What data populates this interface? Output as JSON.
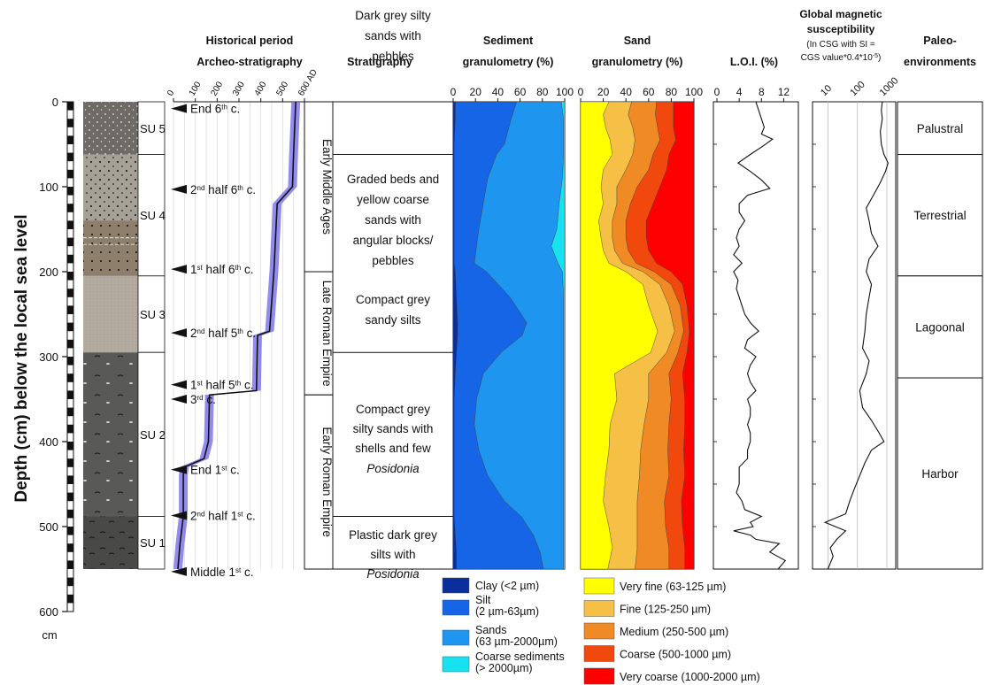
{
  "y_axis": {
    "label": "Depth (cm) below the local sea level",
    "unit": "cm",
    "ticks": [
      "0",
      "100",
      "200",
      "300",
      "400",
      "500",
      "600"
    ]
  },
  "headers": {
    "historical": [
      "Historical period",
      "Archeo-stratigraphy"
    ],
    "stratigraphy": "Stratigraphy",
    "sediment": [
      "Sediment",
      "granulometry (%)"
    ],
    "sand": [
      "Sand",
      "granulometry (%)"
    ],
    "loi": "L.O.I. (%)",
    "mag": [
      "Global magnetic",
      "susceptibility"
    ],
    "mag_note": [
      "(In CSG with SI =",
      "CGS value*0.4*10-5)"
    ],
    "paleo": [
      "Paleo-",
      "environments"
    ]
  },
  "su_units": [
    {
      "label": "SU 5",
      "top": 0,
      "bottom": 62
    },
    {
      "label": "SU 4",
      "top": 62,
      "bottom": 205
    },
    {
      "label": "SU 3",
      "top": 205,
      "bottom": 295
    },
    {
      "label": "SU 2",
      "top": 295,
      "bottom": 488
    },
    {
      "label": "SU 1",
      "top": 488,
      "bottom": 550
    }
  ],
  "periods": [
    {
      "label": "Early Middle Ages",
      "top": 0,
      "bottom": 200
    },
    {
      "label": "Late Roman Empire",
      "top": 200,
      "bottom": 345
    },
    {
      "label": "Early Roman Empire",
      "top": 345,
      "bottom": 550
    }
  ],
  "stratigraphy_units": [
    {
      "top": 0,
      "bottom": 62,
      "lines": [
        "Dark grey silty",
        "sands with",
        "pebbles"
      ]
    },
    {
      "top": 62,
      "bottom": 295,
      "lines": [
        "Graded beds and",
        "yellow coarse",
        "sands with",
        "angular blocks/",
        "pebbles"
      ]
    },
    {
      "top": 200,
      "bottom": 295,
      "lines": [
        "Compact grey",
        "sandy silts"
      ]
    },
    {
      "top": 295,
      "bottom": 488,
      "lines": [
        "Compact grey",
        "silty sands with",
        "shells and few",
        "Posidonia"
      ]
    },
    {
      "top": 488,
      "bottom": 550,
      "lines": [
        "Plastic dark grey",
        "silts with",
        "Posidonia"
      ]
    }
  ],
  "paleoenvironments": [
    {
      "label": "Palustral",
      "top": 0,
      "bottom": 62
    },
    {
      "label": "Terrestrial",
      "top": 62,
      "bottom": 205
    },
    {
      "label": "Lagoonal",
      "top": 205,
      "bottom": 325
    },
    {
      "label": "Harbor",
      "top": 325,
      "bottom": 550
    }
  ],
  "archeo_markers": [
    {
      "depth": 8,
      "label": "End 6th c."
    },
    {
      "depth": 103,
      "label": "2nd half 6th c."
    },
    {
      "depth": 197,
      "label": "1st half 6th c."
    },
    {
      "depth": 272,
      "label": "2nd half 5th c."
    },
    {
      "depth": 333,
      "label": "1st half 5th c."
    },
    {
      "depth": 350,
      "label": "3rd c."
    },
    {
      "depth": 433,
      "label": "End 1st c."
    },
    {
      "depth": 487,
      "label": "2nd half 1st c."
    },
    {
      "depth": 553,
      "label": "Middle 1st c."
    }
  ],
  "legend": {
    "sediment": [
      {
        "label": "Clay (<2 µm)",
        "color": "#0a2e9c"
      },
      {
        "label": "Silt\n(2 µm-63µm)",
        "color": "#1565e6"
      },
      {
        "label": "Sands\n(63 µm-2000µm)",
        "color": "#1e95ee"
      },
      {
        "label": "Coarse sediments\n(> 2000µm)",
        "color": "#19e2f0"
      }
    ],
    "sand": [
      {
        "label": "Very fine (63-125 µm)",
        "color": "#ffff00"
      },
      {
        "label": "Fine (125-250 µm)",
        "color": "#f6bf45"
      },
      {
        "label": "Medium (250-500 µm)",
        "color": "#f08a24"
      },
      {
        "label": "Coarse (500-1000 µm)",
        "color": "#f0480d"
      },
      {
        "label": "Very coarse (1000-2000 µm)",
        "color": "#ff0000"
      }
    ]
  },
  "chart_data": [
    {
      "type": "line",
      "title": "Historical period / Archeo-stratigraphy",
      "xlabel": "AD",
      "ticks": [
        "0",
        "100",
        "200",
        "300",
        "400",
        "500",
        "600 AD"
      ],
      "xlim": [
        0,
        600
      ],
      "color": "#6f66ea",
      "depth": [
        0,
        62,
        100,
        120,
        200,
        270,
        275,
        340,
        345,
        400,
        420,
        430,
        440,
        488,
        520,
        550
      ],
      "value": [
        560,
        550,
        545,
        475,
        460,
        440,
        385,
        380,
        165,
        160,
        140,
        50,
        45,
        45,
        30,
        20
      ]
    },
    {
      "type": "area",
      "title": "Sediment granulometry (%)",
      "ticks": [
        "0",
        "20",
        "40",
        "60",
        "80",
        "100"
      ],
      "xlim": [
        0,
        100
      ],
      "depth": [
        0,
        20,
        50,
        62,
        90,
        120,
        150,
        170,
        190,
        200,
        230,
        260,
        275,
        295,
        320,
        350,
        380,
        410,
        440,
        470,
        488,
        510,
        530,
        550
      ],
      "series": [
        {
          "name": "Clay (<2 µm)",
          "color": "#0a2e9c",
          "values": [
            2,
            2,
            1,
            1,
            1,
            1,
            1,
            1,
            1,
            2,
            3,
            4,
            4,
            3,
            2,
            1,
            1,
            1,
            1,
            1,
            1,
            2,
            3,
            3
          ]
        },
        {
          "name": "Silt (2 µm-63µm)",
          "color": "#1565e6",
          "values": [
            55,
            50,
            45,
            38,
            30,
            26,
            22,
            20,
            18,
            28,
            48,
            62,
            58,
            40,
            25,
            20,
            18,
            22,
            30,
            45,
            60,
            70,
            75,
            78
          ]
        },
        {
          "name": "Sands (63 µm-2000µm)",
          "color": "#1e95ee",
          "values": [
            40,
            47,
            53,
            60,
            67,
            68,
            70,
            67,
            75,
            68,
            48,
            33,
            37,
            56,
            72,
            78,
            80,
            76,
            68,
            53,
            38,
            27,
            21,
            18
          ]
        },
        {
          "name": "Coarse sediments (> 2000µm)",
          "color": "#19e2f0",
          "values": [
            3,
            1,
            1,
            1,
            2,
            5,
            7,
            12,
            6,
            2,
            1,
            1,
            1,
            1,
            1,
            1,
            1,
            1,
            1,
            1,
            1,
            1,
            1,
            1
          ]
        }
      ]
    },
    {
      "type": "area",
      "title": "Sand granulometry (%)",
      "ticks": [
        "0",
        "20",
        "40",
        "60",
        "80",
        "100"
      ],
      "xlim": [
        0,
        100
      ],
      "depth": [
        0,
        15,
        30,
        45,
        62,
        80,
        100,
        120,
        140,
        160,
        175,
        190,
        200,
        215,
        240,
        270,
        295,
        320,
        350,
        380,
        410,
        440,
        470,
        500,
        525,
        550
      ],
      "series": [
        {
          "name": "Very fine (63-125 µm)",
          "color": "#ffff00",
          "values": [
            25,
            20,
            22,
            26,
            28,
            20,
            18,
            20,
            16,
            18,
            20,
            25,
            40,
            55,
            60,
            68,
            62,
            30,
            32,
            26,
            25,
            22,
            20,
            25,
            28,
            24
          ]
        },
        {
          "name": "Fine (125-250 µm)",
          "color": "#f6bf45",
          "values": [
            20,
            22,
            24,
            22,
            18,
            20,
            14,
            12,
            12,
            10,
            10,
            12,
            15,
            15,
            18,
            15,
            14,
            30,
            28,
            30,
            28,
            30,
            30,
            25,
            22,
            24
          ]
        },
        {
          "name": "Medium (250-500 µm)",
          "color": "#f08a24",
          "values": [
            22,
            24,
            22,
            22,
            18,
            20,
            18,
            12,
            12,
            12,
            12,
            12,
            10,
            10,
            10,
            8,
            10,
            18,
            20,
            22,
            24,
            26,
            24,
            25,
            28,
            30
          ]
        },
        {
          "name": "Coarse (500-1000 µm)",
          "color": "#f0480d",
          "values": [
            15,
            16,
            14,
            14,
            14,
            16,
            20,
            20,
            18,
            18,
            18,
            18,
            15,
            10,
            6,
            5,
            8,
            12,
            12,
            14,
            14,
            14,
            15,
            15,
            14,
            14
          ]
        },
        {
          "name": "Very coarse (1000-2000 µm)",
          "color": "#ff0000",
          "values": [
            18,
            18,
            18,
            16,
            22,
            24,
            30,
            36,
            42,
            42,
            40,
            33,
            20,
            10,
            6,
            4,
            6,
            10,
            8,
            8,
            9,
            8,
            11,
            10,
            8,
            8
          ]
        }
      ]
    },
    {
      "type": "line",
      "title": "L.O.I. (%)",
      "ticks": [
        "0",
        "4",
        "8",
        "12"
      ],
      "xlim": [
        0,
        14
      ],
      "depth": [
        0,
        10,
        20,
        30,
        38,
        44,
        52,
        62,
        72,
        82,
        92,
        102,
        110,
        120,
        130,
        140,
        150,
        160,
        170,
        180,
        190,
        200,
        210,
        220,
        230,
        240,
        250,
        260,
        270,
        280,
        290,
        300,
        310,
        320,
        330,
        340,
        350,
        360,
        370,
        380,
        390,
        400,
        410,
        420,
        430,
        440,
        450,
        460,
        470,
        480,
        488,
        495,
        500,
        505,
        510,
        515,
        520,
        530,
        540,
        550
      ],
      "value": [
        7,
        7.5,
        8,
        8.5,
        8,
        10,
        8.3,
        6,
        3.8,
        6,
        8,
        9.5,
        5.5,
        4,
        4,
        5,
        4,
        3.5,
        4,
        3,
        4.5,
        3,
        3.8,
        3.5,
        4,
        4.5,
        5,
        6,
        7.5,
        5.5,
        5,
        7,
        6,
        5.5,
        6,
        7,
        5.5,
        6,
        6,
        5.5,
        6,
        6,
        5.5,
        5.5,
        4,
        4,
        4,
        3.5,
        4.5,
        5,
        8,
        6,
        6.5,
        3,
        6,
        7,
        11.2,
        9.5,
        12.3,
        11
      ]
    },
    {
      "type": "line",
      "title": "Global magnetic susceptibility",
      "scale": "log",
      "ticks": [
        "10",
        "100",
        "1000"
      ],
      "xlim": [
        3,
        2000
      ],
      "depth": [
        0,
        10,
        20,
        35,
        50,
        62,
        72,
        82,
        95,
        110,
        125,
        140,
        155,
        170,
        185,
        200,
        215,
        230,
        250,
        270,
        290,
        305,
        320,
        340,
        360,
        375,
        390,
        400,
        410,
        425,
        440,
        455,
        470,
        485,
        495,
        505,
        515,
        525,
        535,
        550
      ],
      "value": [
        700,
        650,
        700,
        600,
        650,
        800,
        1100,
        900,
        600,
        350,
        200,
        250,
        300,
        500,
        250,
        200,
        300,
        250,
        200,
        180,
        150,
        250,
        200,
        120,
        150,
        300,
        550,
        800,
        300,
        180,
        120,
        80,
        55,
        40,
        8,
        40,
        20,
        12,
        15,
        10
      ]
    }
  ]
}
